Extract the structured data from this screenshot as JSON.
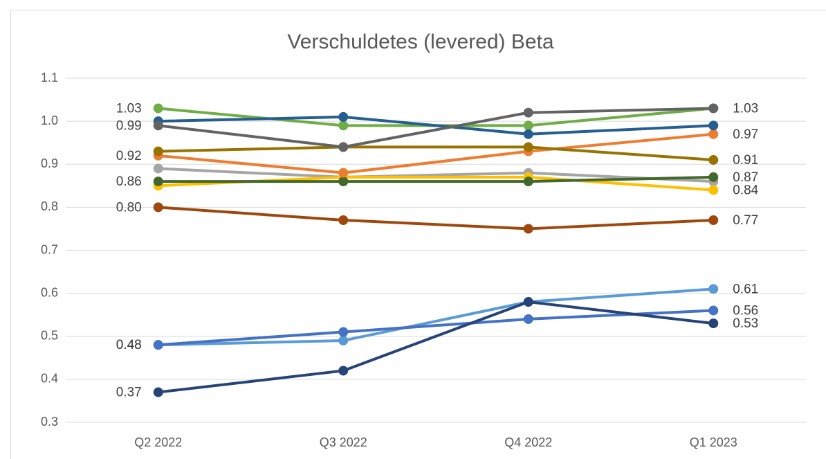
{
  "chart_data": {
    "type": "line",
    "title": "Verschuldetes (levered) Beta",
    "categories": [
      "Q2 2022",
      "Q3 2022",
      "Q4 2022",
      "Q1 2023"
    ],
    "ylim": [
      0.3,
      1.1
    ],
    "yticks": [
      0.3,
      0.4,
      0.5,
      0.6,
      0.7,
      0.8,
      0.9,
      {
        "value": 1,
        "label": "1.0"
      },
      1.1
    ],
    "grid": true,
    "series": [
      {
        "color": "#a5a5a5",
        "values": [
          0.89,
          0.87,
          0.88,
          0.86
        ],
        "value_labels": [
          null,
          null,
          null,
          null
        ]
      },
      {
        "color": "#ffc000",
        "values": [
          0.85,
          0.87,
          0.87,
          0.84
        ],
        "value_labels": [
          null,
          null,
          null,
          "0.84"
        ]
      },
      {
        "color": "#43682b",
        "values": [
          0.86,
          0.86,
          0.86,
          0.87
        ],
        "value_labels": [
          "0.86",
          null,
          null,
          "0.87"
        ]
      },
      {
        "color": "#ed7d31",
        "values": [
          0.92,
          0.88,
          0.93,
          0.97
        ],
        "value_labels": [
          "0.92",
          null,
          null,
          "0.97"
        ]
      },
      {
        "color": "#997300",
        "values": [
          0.93,
          0.94,
          0.94,
          0.91
        ],
        "value_labels": [
          null,
          null,
          null,
          "0.91"
        ]
      },
      {
        "color": "#70ad47",
        "values": [
          1.03,
          0.99,
          0.99,
          1.03
        ],
        "value_labels": [
          "1.03",
          null,
          null,
          null
        ]
      },
      {
        "color": "#255e91",
        "values": [
          1.0,
          1.01,
          0.97,
          0.99
        ],
        "value_labels": [
          null,
          null,
          null,
          null
        ]
      },
      {
        "color": "#636363",
        "values": [
          0.99,
          0.94,
          1.02,
          1.03
        ],
        "value_labels": [
          "0.99",
          null,
          null,
          "1.03"
        ]
      },
      {
        "color": "#9e480e",
        "values": [
          0.8,
          0.77,
          0.75,
          0.77
        ],
        "value_labels": [
          "0.80",
          null,
          null,
          "0.77"
        ]
      },
      {
        "color": "#5b9bd5",
        "values": [
          0.48,
          0.49,
          0.58,
          0.61
        ],
        "value_labels": [
          "0.48",
          null,
          null,
          "0.61"
        ]
      },
      {
        "color": "#4472c4",
        "values": [
          0.48,
          0.51,
          0.54,
          0.56
        ],
        "value_labels": [
          "0.48",
          null,
          null,
          "0.56"
        ]
      },
      {
        "color": "#264478",
        "values": [
          0.37,
          0.42,
          0.58,
          0.53
        ],
        "value_labels": [
          "0.37",
          null,
          null,
          "0.53"
        ]
      }
    ]
  }
}
